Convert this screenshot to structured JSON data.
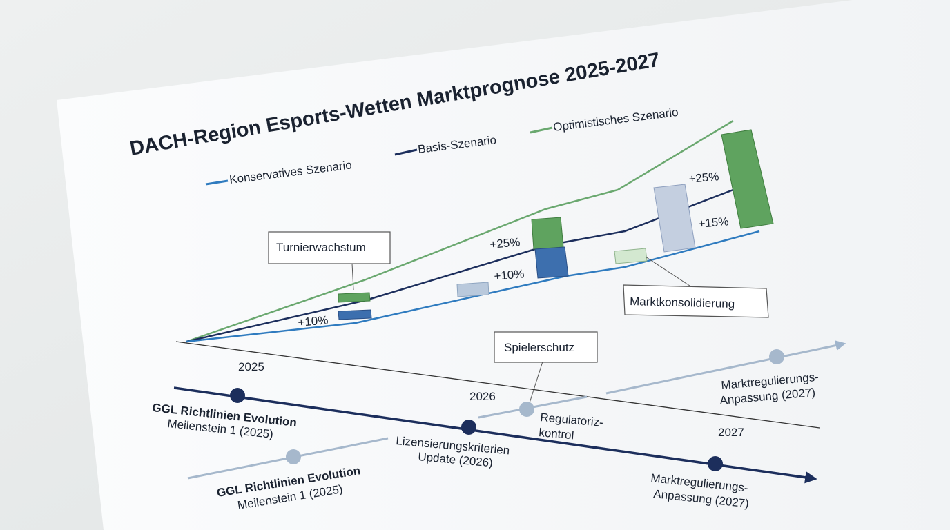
{
  "title": "DACH-Region Esports-Wetten Marktprognose 2025-2027",
  "legend": [
    "Konservatives Szenario",
    "Basis-Szenario",
    "Optimistisches Szenario"
  ],
  "annotations": [
    "Turnierwachstum",
    "Marktkonsolidierung",
    "Spielerschutz"
  ],
  "growth_labels": [
    "+10%",
    "+25%",
    "+10%",
    "+25%",
    "+15%"
  ],
  "years": [
    "2025",
    "2026",
    "2027"
  ],
  "timeline": [
    [
      "GGL Richtlinien Evolution",
      "Meilenstein 1 (2025)"
    ],
    [
      "Lizensierungskriterien",
      "Update (2026)"
    ],
    [
      "Marktregulierungs-",
      "Anpassung (2027)"
    ]
  ],
  "timeline_secondary": [
    [
      "GGL Richtlinien Evolution",
      "Meilenstein 1 (2025)"
    ],
    [
      "Regulatoriz-",
      "kontrol"
    ],
    [
      "Marktregulierungs-",
      "Anpassung (2027)"
    ]
  ]
}
